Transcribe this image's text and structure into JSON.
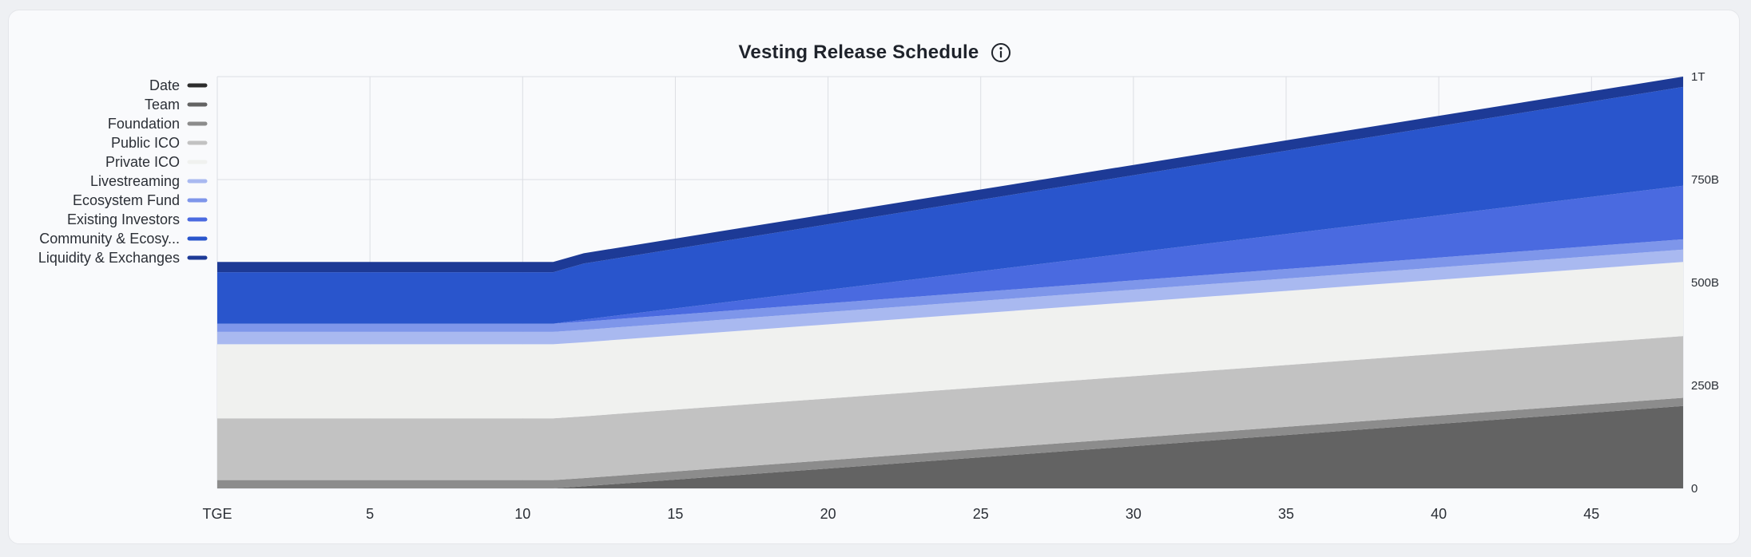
{
  "title": "Vesting Release Schedule",
  "chart_data": {
    "type": "area",
    "stacked": true,
    "title": "Vesting Release Schedule",
    "x": [
      0,
      11,
      12,
      48
    ],
    "x_ticks": [
      {
        "value": 0,
        "label": "TGE"
      },
      {
        "value": 5,
        "label": "5"
      },
      {
        "value": 10,
        "label": "10"
      },
      {
        "value": 15,
        "label": "15"
      },
      {
        "value": 20,
        "label": "20"
      },
      {
        "value": 25,
        "label": "25"
      },
      {
        "value": 30,
        "label": "30"
      },
      {
        "value": 35,
        "label": "35"
      },
      {
        "value": 40,
        "label": "40"
      },
      {
        "value": 45,
        "label": "45"
      }
    ],
    "xlim": [
      0,
      48
    ],
    "y_ticks": [
      {
        "value": 0,
        "label": "0"
      },
      {
        "value": 250,
        "label": "250B"
      },
      {
        "value": 500,
        "label": "500B"
      },
      {
        "value": 750,
        "label": "750B"
      },
      {
        "value": 1000,
        "label": "1T"
      }
    ],
    "ylim": [
      0,
      1000
    ],
    "y_unit": "billions",
    "grid": true,
    "legend_position": "left",
    "series": [
      {
        "name": "Date",
        "color": "#2d2d2d",
        "values": [
          0,
          0,
          0,
          0
        ]
      },
      {
        "name": "Team",
        "color": "#636363",
        "values": [
          0,
          0,
          5,
          200
        ]
      },
      {
        "name": "Foundation",
        "color": "#8c8c8c",
        "values": [
          20,
          20,
          20,
          20
        ]
      },
      {
        "name": "Public ICO",
        "color": "#c2c2c2",
        "values": [
          150,
          150,
          150,
          150
        ]
      },
      {
        "name": "Private ICO",
        "color": "#f0f1ef",
        "values": [
          180,
          180,
          180,
          180
        ]
      },
      {
        "name": "Livestreaming",
        "color": "#a9b9f0",
        "values": [
          30,
          30,
          30,
          30
        ]
      },
      {
        "name": "Ecosystem Fund",
        "color": "#7e96ea",
        "values": [
          20,
          20,
          20,
          25
        ]
      },
      {
        "name": "Existing Investors",
        "color": "#4a6ae0",
        "values": [
          0,
          0,
          5,
          130
        ]
      },
      {
        "name": "Community & Ecosy...",
        "color": "#2955cc",
        "values": [
          125,
          125,
          136,
          240
        ]
      },
      {
        "name": "Liquidity & Exchanges",
        "color": "#1d3a96",
        "values": [
          25,
          25,
          25,
          25
        ]
      }
    ]
  }
}
